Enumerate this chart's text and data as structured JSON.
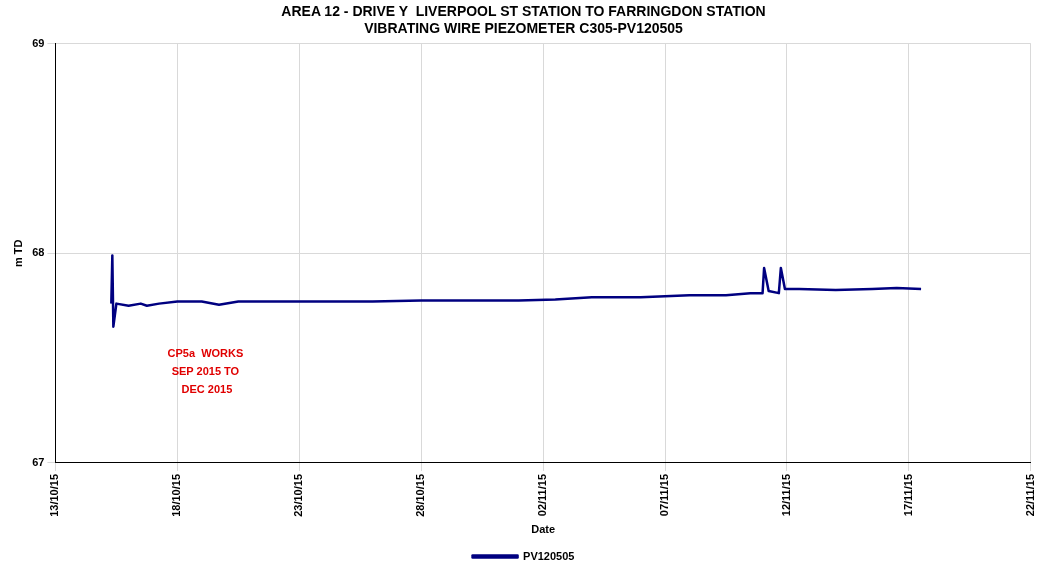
{
  "chart_data": {
    "type": "line",
    "title": "AREA 12 - DRIVE Y  LIVERPOOL ST STATION TO FARRINGDON STATION\nVIBRATING WIRE PIEZOMETER C305-PV120505",
    "xlabel": "Date",
    "ylabel": "m TD",
    "x": [
      "2015-10-15T07:00",
      "2015-10-15T08:00",
      "2015-10-15T09:00",
      "2015-10-15T12:00",
      "2015-10-16T00:00",
      "2015-10-16T12:00",
      "2015-10-16T18:00",
      "2015-10-17T06:00",
      "2015-10-18T00:00",
      "2015-10-19T00:00",
      "2015-10-19T17:00",
      "2015-10-20T12:00",
      "2015-10-22T00:00",
      "2015-10-24T00:00",
      "2015-10-26T00:00",
      "2015-10-28T00:00",
      "2015-10-30T00:00",
      "2015-11-01T00:00",
      "2015-11-02T12:00",
      "2015-11-04T00:00",
      "2015-11-06T00:00",
      "2015-11-08T00:00",
      "2015-11-09T12:00",
      "2015-11-10T12:00",
      "2015-11-11T00:00",
      "2015-11-11T01:30",
      "2015-11-11T06:00",
      "2015-11-11T16:00",
      "2015-11-11T18:00",
      "2015-11-11T22:00",
      "2015-11-12T12:00",
      "2015-11-14T00:00",
      "2015-11-15T12:00",
      "2015-11-16T12:00",
      "2015-11-17T12:00"
    ],
    "series": [
      {
        "name": "PV120505",
        "color": "#000080",
        "values": [
          67.76,
          67.99,
          67.65,
          67.76,
          67.75,
          67.76,
          67.75,
          67.76,
          67.77,
          67.77,
          67.755,
          67.77,
          67.77,
          67.77,
          67.77,
          67.775,
          67.775,
          67.775,
          67.78,
          67.79,
          67.79,
          67.8,
          67.8,
          67.81,
          67.81,
          67.93,
          67.82,
          67.81,
          67.93,
          67.83,
          67.83,
          67.825,
          67.83,
          67.835,
          67.83
        ]
      }
    ],
    "xlim": [
      "2015-10-13",
      "2015-11-22"
    ],
    "xticks": [
      {
        "value": "2015-10-13",
        "label": "13/10/15"
      },
      {
        "value": "2015-10-18",
        "label": "18/10/15"
      },
      {
        "value": "2015-10-23",
        "label": "23/10/15"
      },
      {
        "value": "2015-10-28",
        "label": "28/10/15"
      },
      {
        "value": "2015-11-02",
        "label": "02/11/15"
      },
      {
        "value": "2015-11-07",
        "label": "07/11/15"
      },
      {
        "value": "2015-11-12",
        "label": "12/11/15"
      },
      {
        "value": "2015-11-17",
        "label": "17/11/15"
      },
      {
        "value": "2015-11-22",
        "label": "22/11/15"
      }
    ],
    "ylim": [
      67,
      69
    ],
    "yticks": [
      67,
      68,
      69
    ],
    "grid": true,
    "legend": "bottom",
    "marker": "none",
    "line_style": "solid",
    "annotations": [
      "CP5a  WORKS\nSEP 2015 TO\n DEC 2015"
    ]
  }
}
